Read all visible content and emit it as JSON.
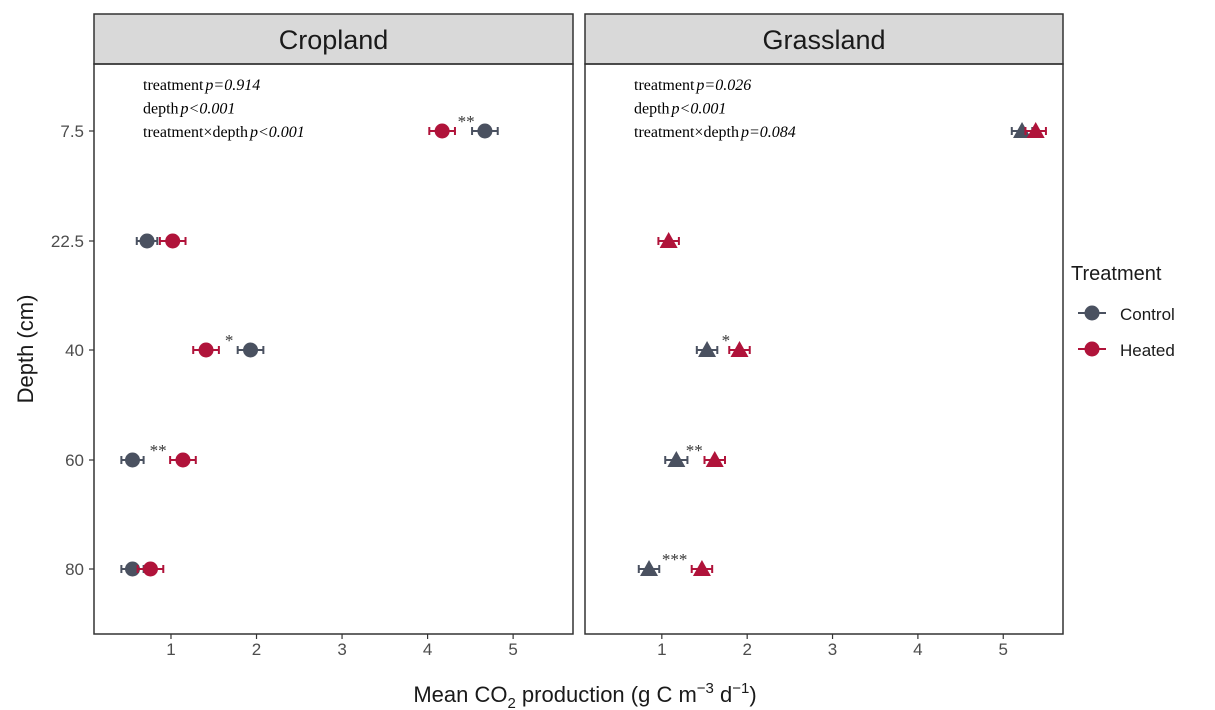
{
  "chart_data": {
    "type": "scatter",
    "xlabel_parts": [
      "Mean CO",
      "2",
      " production (g C m",
      "−3",
      " d",
      "−1",
      ")"
    ],
    "ylabel": "Depth (cm)",
    "y_categories": [
      "7.5",
      "22.5",
      "40",
      "60",
      "80"
    ],
    "xlim": [
      0.1,
      5.7
    ],
    "x_ticks": [
      "1",
      "2",
      "3",
      "4",
      "5"
    ],
    "grid": false,
    "legend": {
      "title": "Treatment",
      "placement": "right",
      "entries": [
        {
          "name": "Control",
          "color": "#4a5160"
        },
        {
          "name": "Heated",
          "color": "#b0133a"
        }
      ]
    },
    "panels": [
      {
        "title": "Cropland",
        "marker": "circle",
        "annotation": [
          {
            "label": "treatment",
            "value": "p=0.914"
          },
          {
            "label": "depth",
            "value": "p<0.001"
          },
          {
            "label": "treatment×depth",
            "value": "p<0.001"
          }
        ],
        "series": [
          {
            "name": "Control",
            "x": [
              4.67,
              0.72,
              1.93,
              0.55,
              0.55
            ],
            "err": [
              0.15,
              0.12,
              0.15,
              0.13,
              0.13
            ]
          },
          {
            "name": "Heated",
            "x": [
              4.17,
              1.02,
              1.41,
              1.14,
              0.76
            ],
            "err": [
              0.15,
              0.15,
              0.15,
              0.15,
              0.15
            ]
          }
        ],
        "significance": [
          {
            "depth": "7.5",
            "label": "**",
            "x": 4.45
          },
          {
            "depth": "40",
            "label": "*",
            "x": 1.68
          },
          {
            "depth": "60",
            "label": "**",
            "x": 0.85
          }
        ]
      },
      {
        "title": "Grassland",
        "marker": "triangle",
        "annotation": [
          {
            "label": "treatment",
            "value": "p=0.026"
          },
          {
            "label": "depth",
            "value": "p<0.001"
          },
          {
            "label": "treatment×depth",
            "value": "p=0.084"
          }
        ],
        "series": [
          {
            "name": "Control",
            "x": [
              5.22,
              null,
              1.53,
              1.17,
              0.85
            ],
            "err": [
              0.12,
              null,
              0.12,
              0.13,
              0.12
            ]
          },
          {
            "name": "Heated",
            "x": [
              5.38,
              1.08,
              1.91,
              1.62,
              1.47
            ],
            "err": [
              0.12,
              0.12,
              0.12,
              0.12,
              0.12
            ]
          }
        ],
        "significance": [
          {
            "depth": "40",
            "label": "*",
            "x": 1.75
          },
          {
            "depth": "60",
            "label": "**",
            "x": 1.38
          },
          {
            "depth": "80",
            "label": "***",
            "x": 1.15
          }
        ]
      }
    ]
  }
}
